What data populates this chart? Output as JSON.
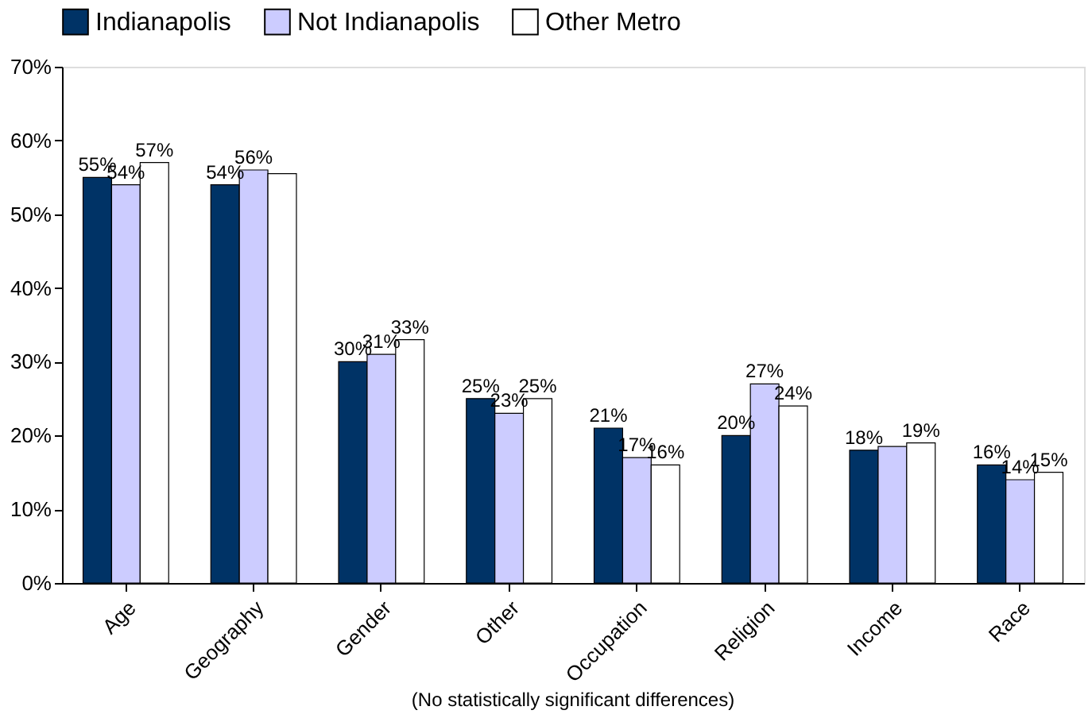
{
  "chart_data": {
    "type": "bar",
    "categories": [
      "Age",
      "Geography",
      "Gender",
      "Other",
      "Occupation",
      "Religion",
      "Income",
      "Race"
    ],
    "series": [
      {
        "name": "Indianapolis",
        "color": "#003366",
        "values": [
          55,
          54,
          30,
          25,
          21,
          20,
          18,
          16
        ],
        "value_labels": [
          "55%",
          "54%",
          "30%",
          "25%",
          "21%",
          "20%",
          "18%",
          "16%"
        ]
      },
      {
        "name": "Not Indianapolis",
        "color": "#ccccff",
        "values": [
          54,
          56,
          31,
          23,
          17,
          27,
          18.5,
          14
        ],
        "value_labels": [
          "54%",
          "56%",
          "31%",
          "23%",
          "17%",
          "27%",
          null,
          "14%"
        ]
      },
      {
        "name": "Other Metro",
        "color": "#ffffff",
        "values": [
          57,
          55.5,
          33,
          25,
          16,
          24,
          19,
          15
        ],
        "value_labels": [
          "57%",
          null,
          "33%",
          "25%",
          "16%",
          "24%",
          "19%",
          "15%"
        ]
      }
    ],
    "ylim": [
      0,
      70
    ],
    "yticks": [
      {
        "value": 0,
        "label": "0%"
      },
      {
        "value": 10,
        "label": "10%"
      },
      {
        "value": 20,
        "label": "20%"
      },
      {
        "value": 30,
        "label": "30%"
      },
      {
        "value": 40,
        "label": "40%"
      },
      {
        "value": 50,
        "label": "50%"
      },
      {
        "value": 60,
        "label": "60%"
      },
      {
        "value": 70,
        "label": "70%"
      }
    ],
    "annotations": [
      "(No statistically significant differences)"
    ],
    "legend": "top",
    "grid": false
  }
}
